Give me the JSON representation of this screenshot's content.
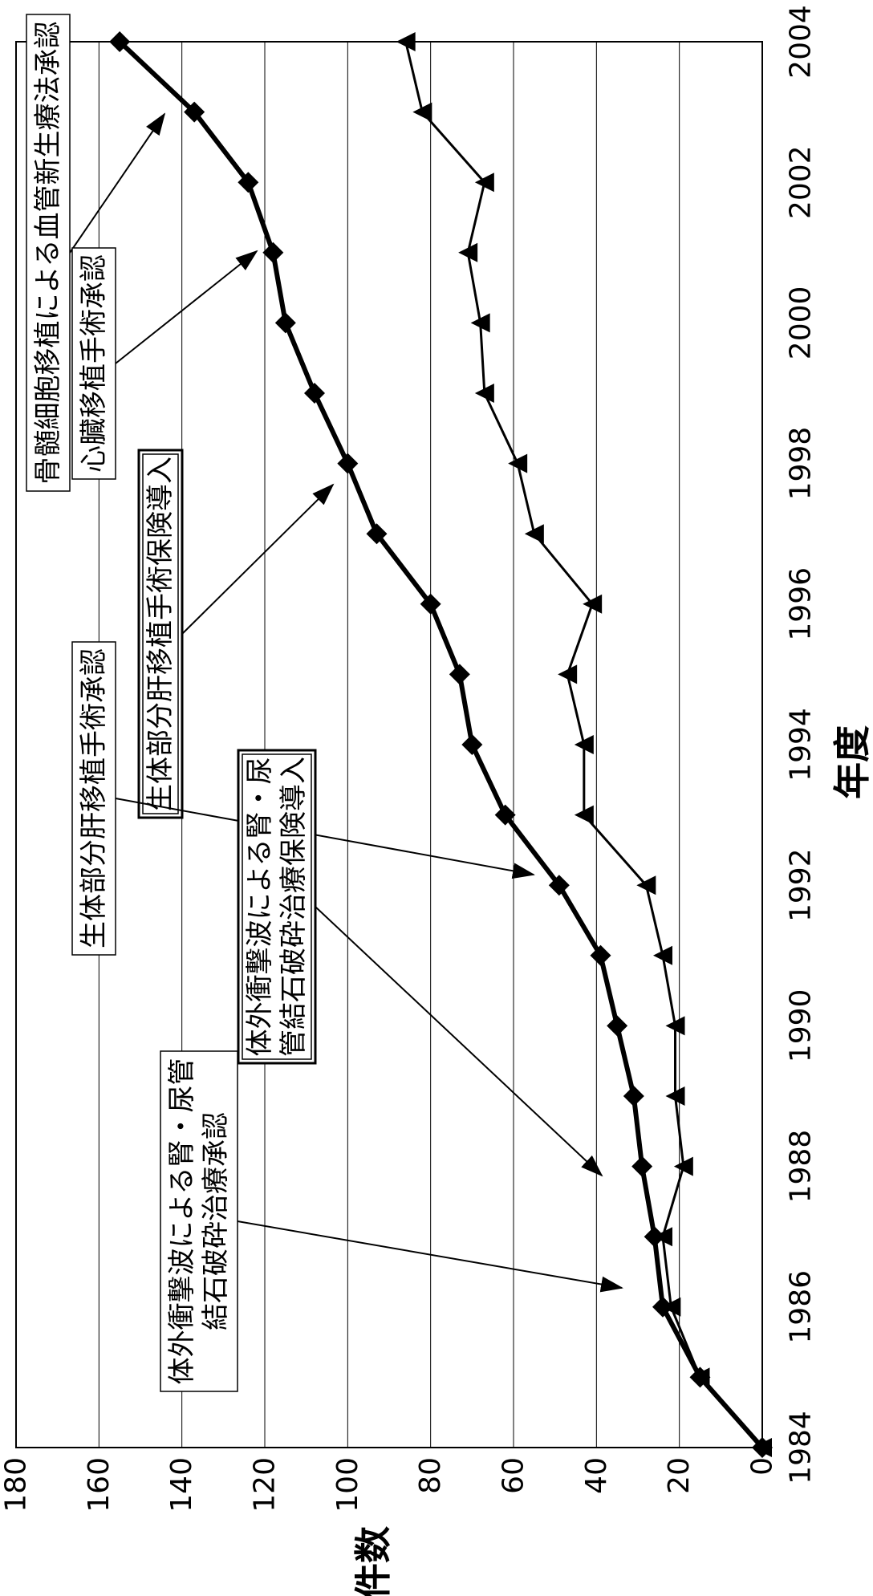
{
  "chart_data": {
    "type": "line",
    "xlabel": "年度",
    "ylabel": "件数",
    "xlim": [
      1984,
      2004
    ],
    "ylim": [
      0,
      180
    ],
    "x_ticks": [
      "1984",
      "1986",
      "1988",
      "1990",
      "1992",
      "1994",
      "1996",
      "1998",
      "2000",
      "2002",
      "2004"
    ],
    "y_ticks": [
      "0",
      "20",
      "40",
      "60",
      "80",
      "100",
      "120",
      "140",
      "160",
      "180"
    ],
    "grid": true,
    "series": [
      {
        "marker": "diamond",
        "points": [
          [
            1984,
            0
          ],
          [
            1985,
            15
          ],
          [
            1986,
            24
          ],
          [
            1987,
            26
          ],
          [
            1988,
            29
          ],
          [
            1989,
            31
          ],
          [
            1990,
            35
          ],
          [
            1991,
            39
          ],
          [
            1992,
            49
          ],
          [
            1993,
            62
          ],
          [
            1994,
            70
          ],
          [
            1995,
            73
          ],
          [
            1996,
            80
          ],
          [
            1997,
            93
          ],
          [
            1998,
            100
          ],
          [
            1999,
            108
          ],
          [
            2000,
            115
          ],
          [
            2001,
            118
          ],
          [
            2002,
            124
          ],
          [
            2003,
            137
          ],
          [
            2004,
            155
          ]
        ]
      },
      {
        "marker": "triangle",
        "points": [
          [
            1984,
            0
          ],
          [
            1985,
            15
          ],
          [
            1986,
            22
          ],
          [
            1987,
            24
          ],
          [
            1988,
            19
          ],
          [
            1989,
            21
          ],
          [
            1990,
            21
          ],
          [
            1991,
            24
          ],
          [
            1992,
            28
          ],
          [
            1993,
            43
          ],
          [
            1994,
            43
          ],
          [
            1995,
            47
          ],
          [
            1996,
            41
          ],
          [
            1997,
            55
          ],
          [
            1998,
            59
          ],
          [
            1999,
            67
          ],
          [
            2000,
            68
          ],
          [
            2001,
            71
          ],
          [
            2002,
            67
          ],
          [
            2003,
            82
          ],
          [
            2004,
            86
          ]
        ]
      }
    ],
    "annotations": [
      {
        "text": "骨髄細胞移植による血管新生療法承認",
        "framed": false,
        "target": [
          2003,
          137
        ]
      },
      {
        "text": "心臓移植手術承認",
        "framed": false,
        "target": [
          2001,
          120
        ]
      },
      {
        "text": "生体部分肝移植手術保険導入",
        "framed": true,
        "target": [
          1998,
          97
        ]
      },
      {
        "text": "生体部分肝移植手術承認",
        "framed": false,
        "target": [
          1992,
          47
        ]
      },
      {
        "text": "体外衝撃波による腎・尿管結石破砕治療保険導入",
        "lines": [
          "体外衝撃波による腎・尿",
          "管結石破砕治療保険導入"
        ],
        "framed": true,
        "target": [
          1988,
          40
        ]
      },
      {
        "text": "体外衝撃波による腎・尿管結石破砕治療承認",
        "lines": [
          "体外衝撃波による腎・尿管",
          "結石破砕治療承認"
        ],
        "framed": false,
        "target": [
          1986,
          28
        ]
      }
    ]
  }
}
